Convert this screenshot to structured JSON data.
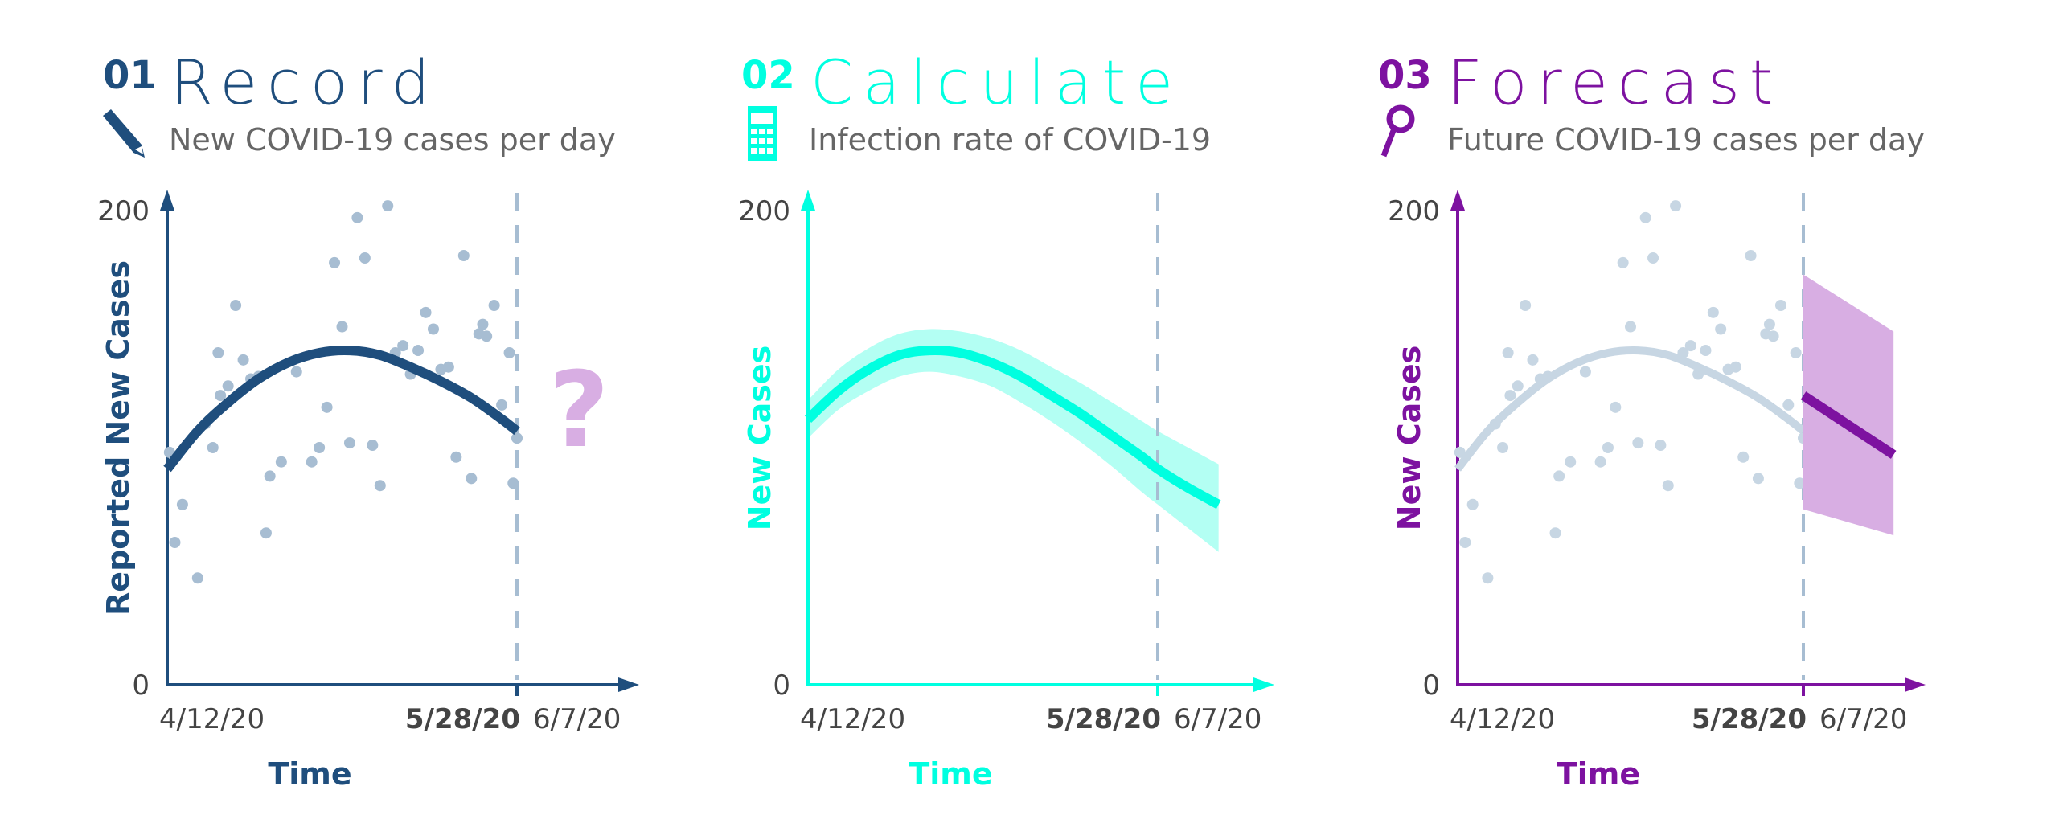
{
  "colors": {
    "record": "#1f4e7d",
    "calculate": "#00ffe0",
    "calculate_band": "#b3fff3",
    "forecast": "#7d12a0",
    "forecast_band": "#d8aee3",
    "points": "#a7bdd2",
    "faded": "#c7d6e3",
    "question": "#d8aee3",
    "dashed": "#a7bdd2"
  },
  "panels": [
    {
      "number": "01",
      "title": "Record",
      "subtitle": "New COVID-19 cases per day",
      "icon": "pencil-icon",
      "ylabel": "Reported New Cases",
      "xlabel": "Time",
      "question": "?"
    },
    {
      "number": "02",
      "title": "Calculate",
      "subtitle": "Infection rate of COVID-19",
      "icon": "calculator-icon",
      "ylabel": "New Cases",
      "xlabel": "Time"
    },
    {
      "number": "03",
      "title": "Forecast",
      "subtitle": "Future COVID-19 cases per day",
      "icon": "magnifier-icon",
      "ylabel": "New Cases",
      "xlabel": "Time"
    }
  ],
  "chart_data": [
    {
      "type": "scatter",
      "title": "Record",
      "xlabel": "Time",
      "ylabel": "Reported New Cases",
      "ylim": [
        0,
        200
      ],
      "yticks": [
        "0",
        "200"
      ],
      "xticks": [
        "4/12/20",
        "5/28/20",
        "6/7/20"
      ],
      "xlim_days": [
        0,
        56
      ],
      "cutoff_day": 46,
      "points": [
        [
          0.3,
          98
        ],
        [
          1,
          60
        ],
        [
          2,
          76
        ],
        [
          4,
          45
        ],
        [
          5,
          110
        ],
        [
          6,
          100
        ],
        [
          6.7,
          140
        ],
        [
          7,
          122
        ],
        [
          8,
          126
        ],
        [
          9,
          160
        ],
        [
          10,
          137
        ],
        [
          11,
          129
        ],
        [
          12,
          130
        ],
        [
          13,
          64
        ],
        [
          13.5,
          88
        ],
        [
          15,
          94
        ],
        [
          17,
          132
        ],
        [
          19,
          94
        ],
        [
          20,
          100
        ],
        [
          21,
          117
        ],
        [
          22,
          178
        ],
        [
          23,
          151
        ],
        [
          24,
          102
        ],
        [
          25,
          197
        ],
        [
          26,
          180
        ],
        [
          27,
          101
        ],
        [
          28,
          84
        ],
        [
          29,
          202
        ],
        [
          30,
          140
        ],
        [
          31,
          143
        ],
        [
          32,
          131
        ],
        [
          33,
          141
        ],
        [
          34,
          157
        ],
        [
          35,
          150
        ],
        [
          36,
          133
        ],
        [
          37,
          134
        ],
        [
          38,
          96
        ],
        [
          39,
          181
        ],
        [
          40,
          87
        ],
        [
          41,
          148
        ],
        [
          41.5,
          152
        ],
        [
          42,
          147
        ],
        [
          43,
          160
        ],
        [
          44,
          118
        ],
        [
          45,
          140
        ],
        [
          45.5,
          85
        ],
        [
          46,
          104
        ]
      ],
      "fit": {
        "name": "trend",
        "x": [
          0,
          4,
          8,
          12,
          16,
          20,
          24,
          28,
          32,
          36,
          40,
          44,
          46
        ],
        "y": [
          91,
          107,
          119,
          129,
          136,
          140,
          141,
          139,
          134,
          128,
          121,
          112,
          107
        ]
      }
    },
    {
      "type": "area",
      "title": "Calculate",
      "xlabel": "Time",
      "ylabel": "New Cases",
      "ylim": [
        0,
        200
      ],
      "yticks": [
        "0",
        "200"
      ],
      "xticks": [
        "4/12/20",
        "5/28/20",
        "6/7/20"
      ],
      "xlim_days": [
        0,
        56
      ],
      "cutoff_day": 46,
      "series": [
        {
          "name": "fit",
          "x": [
            0,
            4,
            8,
            12,
            16,
            20,
            24,
            28,
            32,
            36,
            40,
            44,
            46,
            50,
            54
          ],
          "y": [
            112,
            124,
            133,
            139,
            141,
            140,
            136,
            130,
            122,
            114,
            105,
            96,
            91,
            83,
            76
          ]
        },
        {
          "name": "upper",
          "x": [
            0,
            4,
            8,
            12,
            16,
            20,
            24,
            28,
            32,
            36,
            40,
            44,
            46,
            50,
            54
          ],
          "y": [
            120,
            133,
            142,
            148,
            150,
            149,
            146,
            141,
            134,
            127,
            119,
            111,
            107,
            100,
            93
          ]
        },
        {
          "name": "lower",
          "x": [
            0,
            4,
            8,
            12,
            16,
            20,
            24,
            28,
            32,
            36,
            40,
            44,
            46,
            50,
            54
          ],
          "y": [
            104,
            116,
            124,
            130,
            132,
            130,
            126,
            119,
            111,
            102,
            92,
            81,
            76,
            66,
            56
          ]
        }
      ]
    },
    {
      "type": "scatter",
      "title": "Forecast",
      "xlabel": "Time",
      "ylabel": "New Cases",
      "ylim": [
        0,
        200
      ],
      "yticks": [
        "0",
        "200"
      ],
      "xticks": [
        "4/12/20",
        "5/28/20",
        "6/7/20"
      ],
      "xlim_days": [
        0,
        56
      ],
      "cutoff_day": 46,
      "forecast": {
        "x": [
          46,
          58
        ],
        "y": [
          122,
          97
        ],
        "upper": [
          173,
          149
        ],
        "lower": [
          74,
          63
        ]
      }
    }
  ]
}
